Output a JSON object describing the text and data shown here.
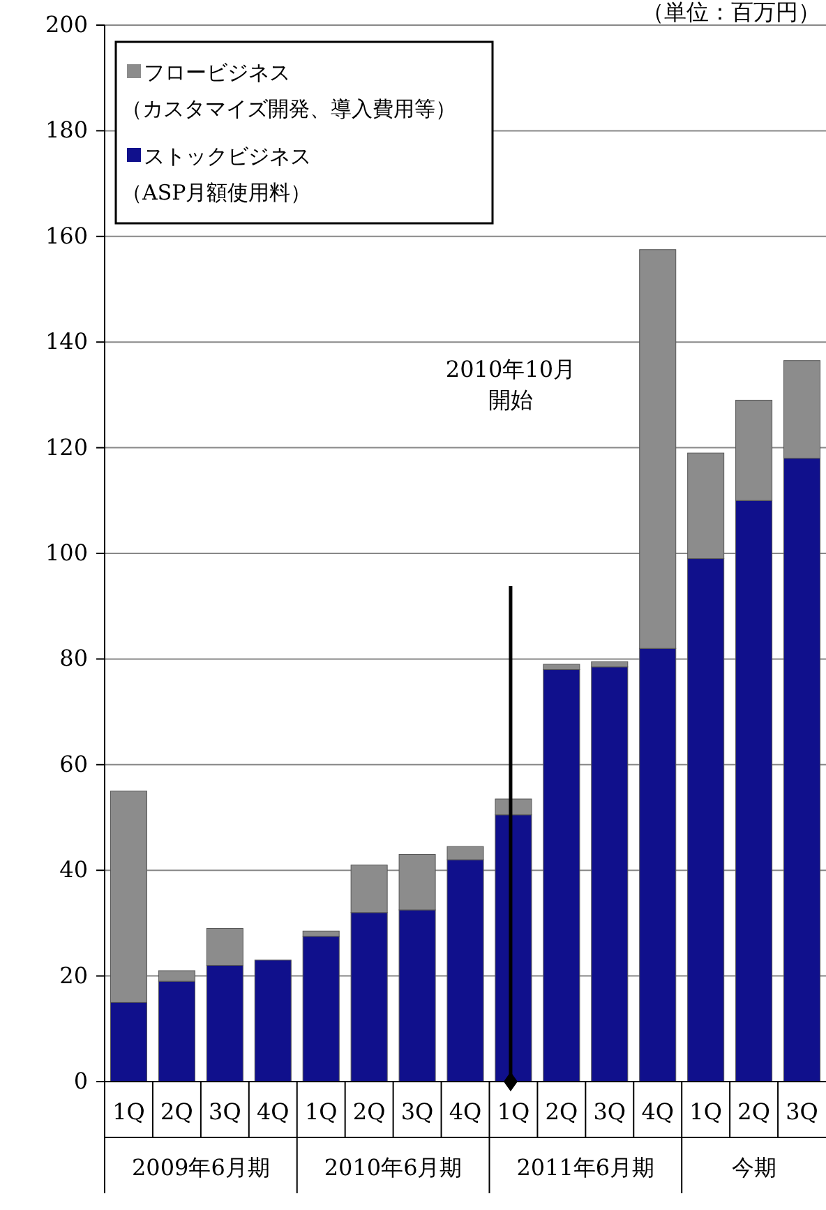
{
  "chart_data": {
    "type": "bar",
    "stacked": true,
    "legend": "top left",
    "grid": "y",
    "categories": [
      "1Q",
      "2Q",
      "3Q",
      "4Q",
      "1Q",
      "2Q",
      "3Q",
      "4Q",
      "1Q",
      "2Q",
      "3Q",
      "4Q",
      "1Q",
      "2Q",
      "3Q"
    ],
    "series": [
      {
        "name": "ストックビジネス（ASP月額使用料）",
        "color": "#10108c",
        "values": [
          15,
          19,
          22,
          23,
          27.5,
          32,
          32.5,
          42,
          50.5,
          78,
          78.5,
          82,
          99,
          110,
          118
        ]
      },
      {
        "name": "フロービジネス（カスタマイズ開発、導入費用等）",
        "color": "#8c8c8c",
        "values": [
          40,
          2,
          7,
          0,
          1,
          9,
          10.5,
          2.5,
          3,
          1,
          1,
          75.5,
          20,
          19,
          18.5
        ]
      }
    ],
    "ylim": [
      0,
      200
    ],
    "yticks": [
      0,
      20,
      40,
      60,
      80,
      100,
      120,
      140,
      160,
      180,
      200
    ],
    "annotations": [
      "（単位：百万円）",
      "2009年6月期",
      "2010年6月期",
      "2011年6月期",
      "今期",
      "2010年10月",
      "開始"
    ]
  }
}
